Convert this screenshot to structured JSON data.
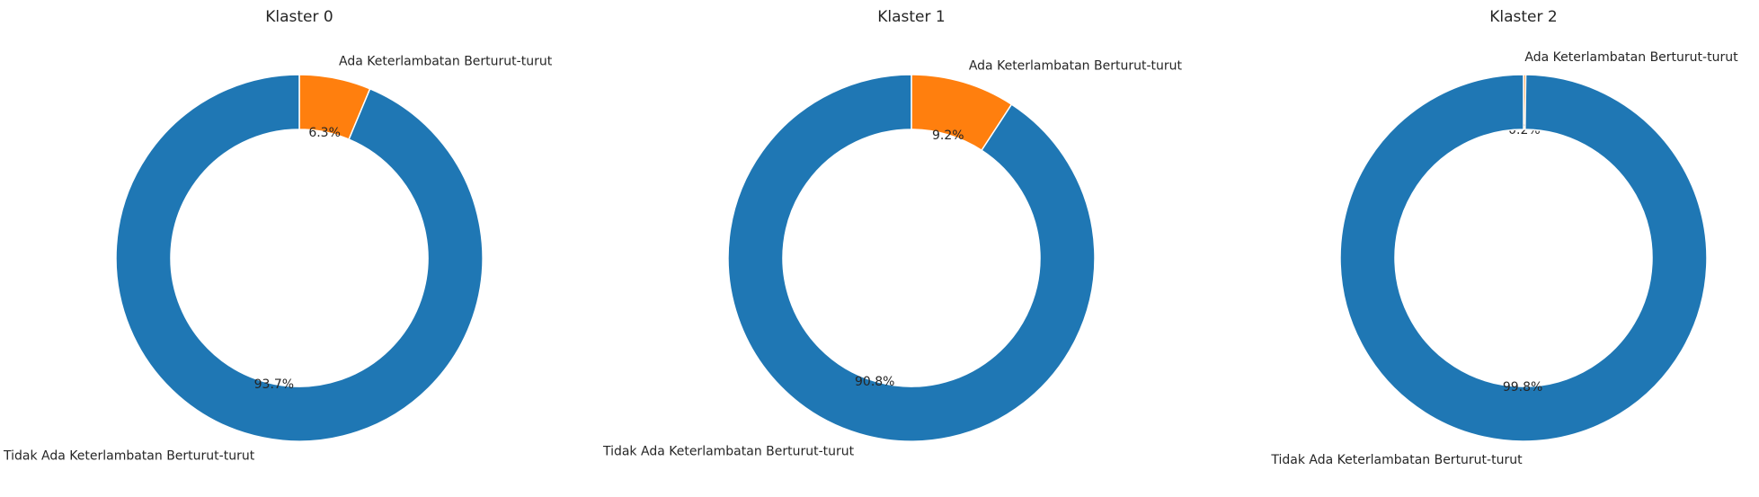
{
  "chart_data": [
    {
      "type": "pie",
      "variant": "donut",
      "title": "Klaster 0",
      "slices": [
        {
          "label": "Ada Keterlambatan Berturut-turut",
          "value": 6.3,
          "pct_label": "6.3%",
          "color": "#ff7f0e"
        },
        {
          "label": "Tidak Ada Keterlambatan Berturut-turut",
          "value": 93.7,
          "pct_label": "93.7%",
          "color": "#1f77b4"
        }
      ]
    },
    {
      "type": "pie",
      "variant": "donut",
      "title": "Klaster 1",
      "slices": [
        {
          "label": "Ada Keterlambatan Berturut-turut",
          "value": 9.2,
          "pct_label": "9.2%",
          "color": "#ff7f0e"
        },
        {
          "label": "Tidak Ada Keterlambatan Berturut-turut",
          "value": 90.8,
          "pct_label": "90.8%",
          "color": "#1f77b4"
        }
      ]
    },
    {
      "type": "pie",
      "variant": "donut",
      "title": "Klaster 2",
      "slices": [
        {
          "label": "Ada Keterlambatan Berturut-turut",
          "value": 0.2,
          "pct_label": "0.2%",
          "color": "#ff7f0e"
        },
        {
          "label": "Tidak Ada Keterlambatan Berturut-turut",
          "value": 99.8,
          "pct_label": "99.8%",
          "color": "#1f77b4"
        }
      ]
    }
  ]
}
